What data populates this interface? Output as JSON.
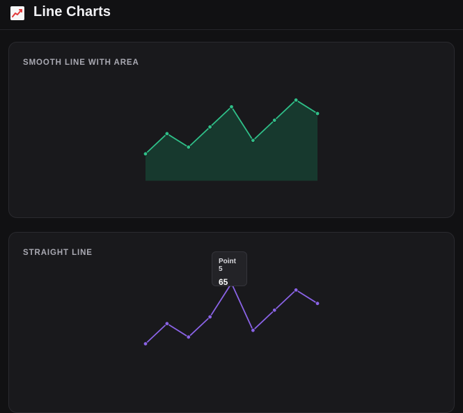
{
  "header": {
    "title": "Line Charts",
    "icon": "chart-increasing-icon"
  },
  "cards": [
    {
      "title": "SMOOTH LINE WITH AREA"
    },
    {
      "title": "STRAIGHT LINE"
    }
  ],
  "tooltip": {
    "label": "Point 5",
    "value": "65"
  },
  "colors": {
    "background": "#111113",
    "card": "#19191c",
    "green_line": "#2fbf88",
    "green_fill": "#17392e",
    "purple_line": "#8a63e6",
    "purple_point": "#8a63e6"
  },
  "chart_data": [
    {
      "type": "area",
      "x": [
        1,
        2,
        3,
        4,
        5,
        6,
        7,
        8,
        9
      ],
      "values": [
        20,
        35,
        25,
        40,
        55,
        30,
        45,
        60,
        50
      ],
      "ylim": [
        0,
        100
      ],
      "grid": false,
      "title": "SMOOTH LINE WITH AREA"
    },
    {
      "type": "line",
      "x": [
        1,
        2,
        3,
        4,
        5,
        6,
        7,
        8,
        9
      ],
      "values": [
        20,
        35,
        25,
        40,
        65,
        30,
        45,
        60,
        50
      ],
      "ylim": [
        0,
        100
      ],
      "grid": false,
      "title": "STRAIGHT LINE",
      "highlighted_point": {
        "x": 5,
        "value": 65
      }
    }
  ]
}
